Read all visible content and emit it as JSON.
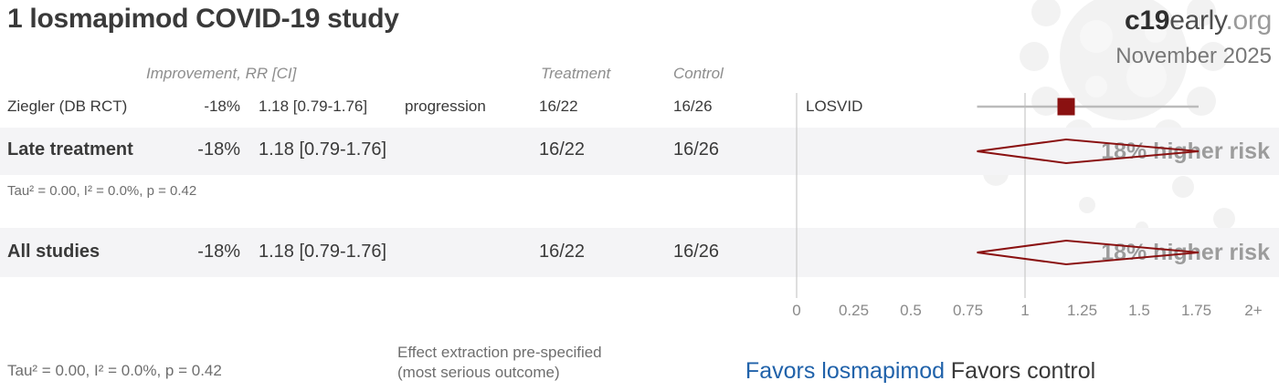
{
  "page": {
    "title": "1 losmapimod COVID-19 study",
    "brand_bold": "c19",
    "brand_name": "early",
    "brand_tld": ".org",
    "date": "November 2025"
  },
  "table": {
    "col_improvement": "Improvement, RR [CI]",
    "col_treatment": "Treatment",
    "col_control": "Control"
  },
  "rows": {
    "study": {
      "name": "Ziegler (DB RCT)",
      "improvement": "-18%",
      "rr_ci": "1.18 [0.79-1.76]",
      "outcome": "progression",
      "treatment": "16/22",
      "control": "16/26",
      "tag": "LOSVID"
    },
    "late": {
      "label": "Late treatment",
      "improvement": "-18%",
      "rr_ci": "1.18 [0.79-1.76]",
      "treatment": "16/22",
      "control": "16/26",
      "effect": "18% higher risk",
      "stats": "Tau² = 0.00, I² = 0.0%, p = 0.42"
    },
    "all": {
      "label": "All studies",
      "improvement": "-18%",
      "rr_ci": "1.18 [0.79-1.76]",
      "treatment": "16/22",
      "control": "16/26",
      "effect": "18% higher risk"
    }
  },
  "footer": {
    "stats": "Tau² = 0.00, I² = 0.0%, p = 0.42",
    "note1": "Effect extraction pre-specified",
    "note2": "(most serious outcome)",
    "favors_left": "Favors losmapimod",
    "favors_right": "Favors control"
  },
  "colors": {
    "accent_red": "#8a1111",
    "red_text": "#9b1c1c",
    "favors_blue": "#2062aa",
    "band_bg": "#f4f4f6",
    "grid_line": "#cccccc",
    "ci_line": "#bbbbbb",
    "muted_text": "#8d8d8d",
    "effect_gray": "#9c9c9c"
  },
  "chart_data": {
    "type": "forest",
    "title": "1 losmapimod COVID-19 study",
    "x_axis": {
      "tick_values": [
        0,
        0.25,
        0.5,
        0.75,
        1,
        1.25,
        1.5,
        1.75,
        2
      ],
      "tick_labels": [
        "0",
        "0.25",
        "0.5",
        "0.75",
        "1",
        "1.25",
        "1.5",
        "1.75",
        "2+"
      ],
      "reference_values": [
        0,
        1
      ],
      "xlim": [
        0,
        2
      ]
    },
    "legend": {
      "left": "Favors losmapimod",
      "right": "Favors control"
    },
    "rows": [
      {
        "label": "Ziegler (DB RCT)",
        "marker": "square",
        "rr": 1.18,
        "ci_low": 0.79,
        "ci_high": 1.76,
        "improvement_pct": -18,
        "outcome": "progression",
        "treatment_events": "16/22",
        "control_events": "16/26",
        "tag": "LOSVID"
      },
      {
        "label": "Late treatment",
        "marker": "diamond",
        "rr": 1.18,
        "ci_low": 0.79,
        "ci_high": 1.76,
        "improvement_pct": -18,
        "treatment_events": "16/22",
        "control_events": "16/26",
        "annotation": "18% higher risk",
        "heterogeneity": "Tau² = 0.00, I² = 0.0%, p = 0.42"
      },
      {
        "label": "All studies",
        "marker": "diamond",
        "rr": 1.18,
        "ci_low": 0.79,
        "ci_high": 1.76,
        "improvement_pct": -18,
        "treatment_events": "16/22",
        "control_events": "16/26",
        "annotation": "18% higher risk",
        "heterogeneity": "Tau² = 0.00, I² = 0.0%, p = 0.42"
      }
    ]
  }
}
